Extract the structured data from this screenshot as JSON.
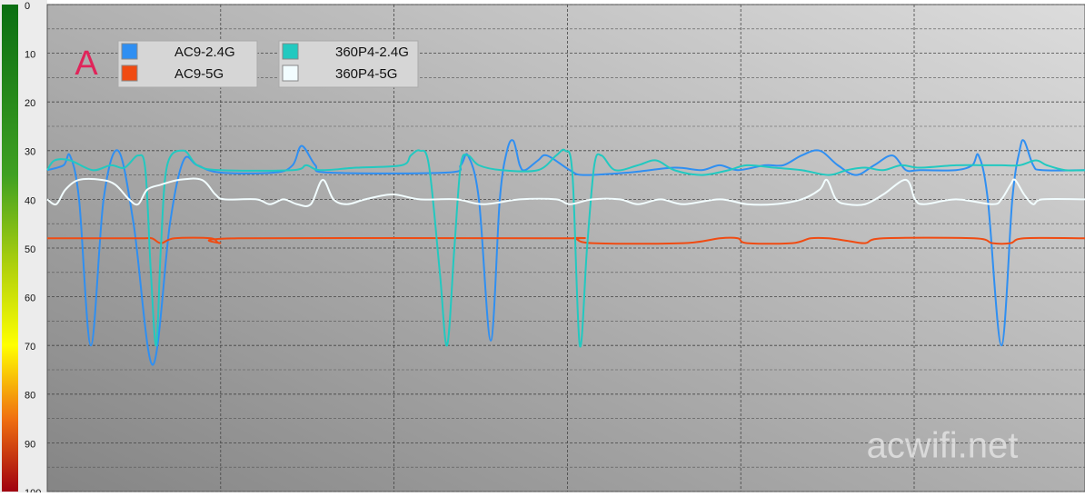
{
  "chart_data": {
    "type": "line",
    "annotation": "A",
    "watermark": "acwifi.net",
    "xlim": [
      0,
      1142
    ],
    "ylim": [
      0,
      100
    ],
    "y_inverted": true,
    "yticks": [
      0,
      10,
      20,
      30,
      40,
      50,
      60,
      70,
      80,
      90,
      100
    ],
    "grid": true,
    "series": [
      {
        "name": "AC9-2.4G",
        "color": "#2f8ff2",
        "x": [
          0,
          18,
          25,
          35,
          48,
          62,
          78,
          95,
          116,
          135,
          150,
          165,
          190,
          250,
          270,
          280,
          295,
          310,
          440,
          455,
          463,
          475,
          488,
          498,
          506,
          513,
          520,
          526,
          540,
          550,
          575,
          590,
          640,
          690,
          720,
          740,
          760,
          790,
          810,
          830,
          850,
          870,
          890,
          910,
          930,
          945,
          960,
          1000,
          1018,
          1025,
          1035,
          1050,
          1062,
          1070,
          1075,
          1085,
          1095,
          1142
        ],
        "values": [
          34,
          33,
          31,
          40,
          70,
          40,
          30,
          45,
          74,
          45,
          32,
          33,
          34.5,
          34.5,
          33,
          29,
          33,
          34.5,
          34.5,
          33,
          31,
          40,
          69,
          40,
          30,
          28,
          33,
          34,
          32,
          31,
          34,
          35,
          34.5,
          33.5,
          34,
          33,
          34,
          33,
          33,
          31,
          30,
          33,
          35,
          33,
          31,
          34,
          34,
          34,
          33,
          31,
          40,
          70,
          40,
          30,
          28,
          33,
          34,
          34
        ]
      },
      {
        "name": "AC9-5G",
        "color": "#f04b12",
        "x": [
          0,
          100,
          115,
          125,
          140,
          180,
          190,
          210,
          560,
          580,
          600,
          700,
          740,
          760,
          770,
          820,
          840,
          860,
          880,
          900,
          920,
          1020,
          1040,
          1060,
          1075,
          1142
        ],
        "values": [
          48,
          48,
          48,
          49,
          48,
          48,
          49,
          48,
          48,
          48,
          49,
          49,
          48,
          48,
          49,
          49,
          48,
          48,
          48.5,
          49,
          48,
          48,
          49,
          49,
          48,
          48
        ]
      },
      {
        "name": "360P4-2.4G",
        "color": "#22c9c0",
        "x": [
          0,
          8,
          25,
          50,
          70,
          85,
          100,
          108,
          114,
          120,
          125,
          132,
          150,
          165,
          190,
          270,
          285,
          300,
          340,
          390,
          400,
          410,
          420,
          432,
          440,
          448,
          455,
          463,
          475,
          500,
          540,
          560,
          570,
          578,
          586,
          594,
          602,
          610,
          625,
          650,
          670,
          690,
          720,
          750,
          770,
          800,
          830,
          860,
          880,
          900,
          920,
          940,
          960,
          1000,
          1030,
          1050,
          1070,
          1088,
          1100,
          1120,
          1142
        ],
        "values": [
          34,
          32,
          32,
          34,
          33,
          33.5,
          31,
          34,
          55,
          70,
          50,
          33,
          30,
          33,
          34,
          34,
          33,
          34,
          33.5,
          33,
          31,
          30,
          33,
          55,
          70,
          50,
          33,
          31,
          33,
          34,
          34,
          31,
          30,
          35,
          70,
          50,
          33,
          31,
          34,
          33,
          32,
          34,
          35,
          34,
          33,
          33.5,
          34,
          35,
          34,
          33.5,
          34,
          33,
          33.5,
          33,
          33,
          33,
          33,
          32,
          33,
          34,
          34
        ]
      },
      {
        "name": "360P4-5G",
        "color": "#f2fdff",
        "x": [
          0,
          10,
          20,
          35,
          60,
          75,
          90,
          100,
          110,
          125,
          145,
          170,
          185,
          195,
          230,
          245,
          260,
          275,
          290,
          303,
          315,
          330,
          350,
          380,
          410,
          450,
          480,
          520,
          560,
          575,
          600,
          630,
          650,
          675,
          700,
          740,
          770,
          800,
          830,
          850,
          858,
          868,
          880,
          900,
          920,
          945,
          955,
          965,
          1000,
          1040,
          1050,
          1060,
          1065,
          1075,
          1085,
          1095,
          1142
        ],
        "values": [
          40,
          41,
          38,
          36,
          36,
          37,
          40,
          41,
          38,
          37,
          36,
          36,
          39,
          40,
          40,
          41,
          40,
          41,
          41,
          36,
          40,
          41,
          40,
          39,
          40,
          40,
          41,
          40,
          40,
          41,
          40,
          40,
          41,
          40,
          41,
          40,
          41,
          41,
          40,
          38,
          36,
          40,
          41,
          41,
          39,
          36,
          40,
          41,
          40,
          41,
          40,
          37,
          36,
          39,
          41,
          40,
          40
        ]
      }
    ]
  }
}
